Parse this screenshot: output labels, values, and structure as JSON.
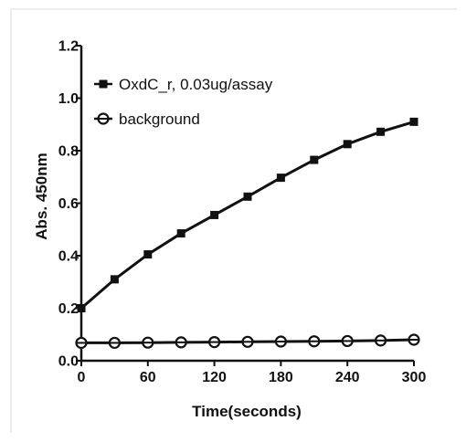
{
  "chart_data": {
    "type": "line",
    "xlabel": "Time(seconds)",
    "ylabel": "Abs. 450nm",
    "xlim": [
      0,
      300
    ],
    "ylim": [
      0.0,
      1.2
    ],
    "xticks": [
      0,
      60,
      120,
      180,
      240,
      300
    ],
    "yticks": [
      0.0,
      0.2,
      0.4,
      0.6,
      0.8,
      1.0,
      1.2
    ],
    "xtick_labels": [
      "0",
      "60",
      "120",
      "180",
      "240",
      "300"
    ],
    "ytick_labels": [
      "0.0",
      "0.2",
      "0.4",
      "0.6",
      "0.8",
      "1.0",
      "1.2"
    ],
    "grid": false,
    "legend_position": "top-left",
    "series": [
      {
        "name": "OxdC_r, 0.03ug/assay",
        "marker": "filled-square",
        "x": [
          0,
          30,
          60,
          90,
          120,
          150,
          180,
          210,
          240,
          270,
          300
        ],
        "y": [
          0.2,
          0.31,
          0.405,
          0.485,
          0.555,
          0.625,
          0.697,
          0.765,
          0.825,
          0.872,
          0.91
        ]
      },
      {
        "name": "background",
        "marker": "open-circle-bar",
        "x": [
          0,
          30,
          60,
          90,
          120,
          150,
          180,
          210,
          240,
          270,
          300
        ],
        "y": [
          0.068,
          0.068,
          0.069,
          0.07,
          0.071,
          0.072,
          0.073,
          0.074,
          0.075,
          0.077,
          0.08
        ]
      }
    ]
  }
}
